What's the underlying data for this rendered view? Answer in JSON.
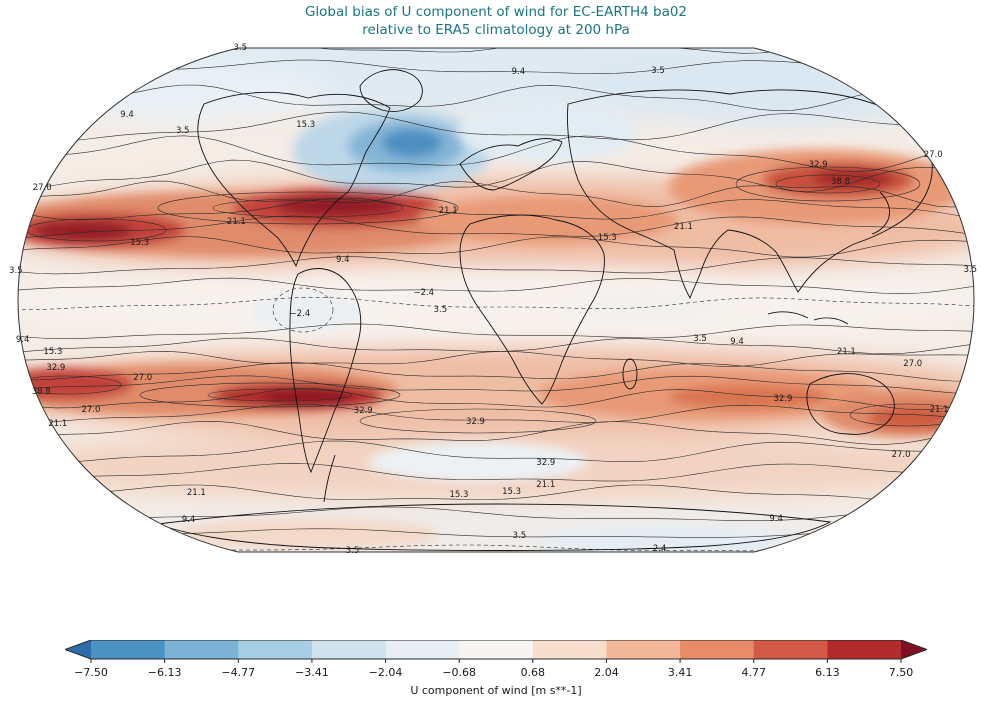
{
  "title": {
    "line1": "Global bias of U component of wind for EC-EARTH4 ba02",
    "line2": "relative to ERA5 climatology at 200 hPa",
    "color": "#1a7583"
  },
  "chart_data": {
    "type": "heatmap",
    "subtype": "filled-contour-global-bias-map",
    "projection": "Robinson",
    "variable": "U component of wind",
    "model": "EC-EARTH4",
    "experiment": "ba02",
    "reference": "ERA5 climatology",
    "level": "200 hPa",
    "contour_levels": [
      -2.4,
      3.5,
      9.4,
      15.3,
      21.1,
      27.0,
      32.9,
      38.8
    ],
    "colorbar": {
      "label": "U component of wind [m s**-1]",
      "extend": "both",
      "ticks": [
        "−7.50",
        "−6.13",
        "−4.77",
        "−3.41",
        "−2.04",
        "−0.68",
        "0.68",
        "2.04",
        "3.41",
        "4.77",
        "6.13",
        "7.50"
      ],
      "tick_values": [
        -7.5,
        -6.13,
        -4.77,
        -3.41,
        -2.04,
        -0.68,
        0.68,
        2.04,
        3.41,
        4.77,
        6.13,
        7.5
      ],
      "colors": {
        "under": "#2d6ca8",
        "segments": [
          "#4b92c3",
          "#7bb2d6",
          "#a7cee3",
          "#cfe1ed",
          "#e8eef3",
          "#f7f5f3",
          "#f7decd",
          "#f2b899",
          "#e88b68",
          "#d25a47",
          "#b22b2c"
        ],
        "over": "#7f1021"
      }
    },
    "contour_labels": [
      {
        "v": "3.5",
        "x": 23.8,
        "y": 1.2
      },
      {
        "v": "9.4",
        "x": 52.3,
        "y": 5.8
      },
      {
        "v": "3.5",
        "x": 66.6,
        "y": 5.6
      },
      {
        "v": "9.4",
        "x": 12.2,
        "y": 14.1
      },
      {
        "v": "15.3",
        "x": 30.5,
        "y": 16.1
      },
      {
        "v": "3.5",
        "x": 17.9,
        "y": 17.2
      },
      {
        "v": "27.0",
        "x": 94.8,
        "y": 21.9
      },
      {
        "v": "32.9",
        "x": 83.0,
        "y": 23.8
      },
      {
        "v": "38.8",
        "x": 85.3,
        "y": 27.1
      },
      {
        "v": "27.0",
        "x": 3.5,
        "y": 28.3
      },
      {
        "v": "21.1",
        "x": 45.1,
        "y": 32.8
      },
      {
        "v": "21.1",
        "x": 23.4,
        "y": 34.9
      },
      {
        "v": "21.1",
        "x": 69.2,
        "y": 35.9
      },
      {
        "v": "15.3",
        "x": 61.4,
        "y": 38.0
      },
      {
        "v": "15.3",
        "x": 13.5,
        "y": 39.0
      },
      {
        "v": "9.4",
        "x": 34.3,
        "y": 42.2
      },
      {
        "v": "3.5",
        "x": 0.8,
        "y": 44.4
      },
      {
        "v": "3.5",
        "x": 98.6,
        "y": 44.2
      },
      {
        "v": "−2.4",
        "x": 42.6,
        "y": 48.7
      },
      {
        "v": "3.5",
        "x": 44.3,
        "y": 51.9
      },
      {
        "v": "−2.4",
        "x": 29.9,
        "y": 52.7
      },
      {
        "v": "9.4",
        "x": 1.5,
        "y": 57.8
      },
      {
        "v": "3.5",
        "x": 70.9,
        "y": 57.6
      },
      {
        "v": "9.4",
        "x": 74.7,
        "y": 58.1
      },
      {
        "v": "15.3",
        "x": 4.6,
        "y": 60.1
      },
      {
        "v": "21.1",
        "x": 85.9,
        "y": 60.1
      },
      {
        "v": "32.9",
        "x": 4.9,
        "y": 63.2
      },
      {
        "v": "27.0",
        "x": 92.7,
        "y": 62.4
      },
      {
        "v": "27.0",
        "x": 13.8,
        "y": 65.1
      },
      {
        "v": "38.8",
        "x": 3.4,
        "y": 67.8
      },
      {
        "v": "32.9",
        "x": 79.4,
        "y": 69.2
      },
      {
        "v": "27.0",
        "x": 8.5,
        "y": 71.3
      },
      {
        "v": "32.9",
        "x": 36.4,
        "y": 71.5
      },
      {
        "v": "21.1",
        "x": 95.4,
        "y": 71.3
      },
      {
        "v": "21.1",
        "x": 5.1,
        "y": 74.0
      },
      {
        "v": "32.9",
        "x": 47.9,
        "y": 73.6
      },
      {
        "v": "27.0",
        "x": 91.5,
        "y": 80.0
      },
      {
        "v": "32.9",
        "x": 55.1,
        "y": 81.6
      },
      {
        "v": "21.1",
        "x": 55.1,
        "y": 85.9
      },
      {
        "v": "15.3",
        "x": 46.2,
        "y": 87.8
      },
      {
        "v": "15.3",
        "x": 51.6,
        "y": 87.2
      },
      {
        "v": "21.1",
        "x": 19.3,
        "y": 87.4
      },
      {
        "v": "9.4",
        "x": 18.5,
        "y": 92.6
      },
      {
        "v": "9.4",
        "x": 78.7,
        "y": 92.4
      },
      {
        "v": "3.5",
        "x": 52.4,
        "y": 95.7
      },
      {
        "v": "−2.4",
        "x": 66.4,
        "y": 98.3
      },
      {
        "v": "3.5",
        "x": 35.3,
        "y": 98.6
      }
    ]
  }
}
